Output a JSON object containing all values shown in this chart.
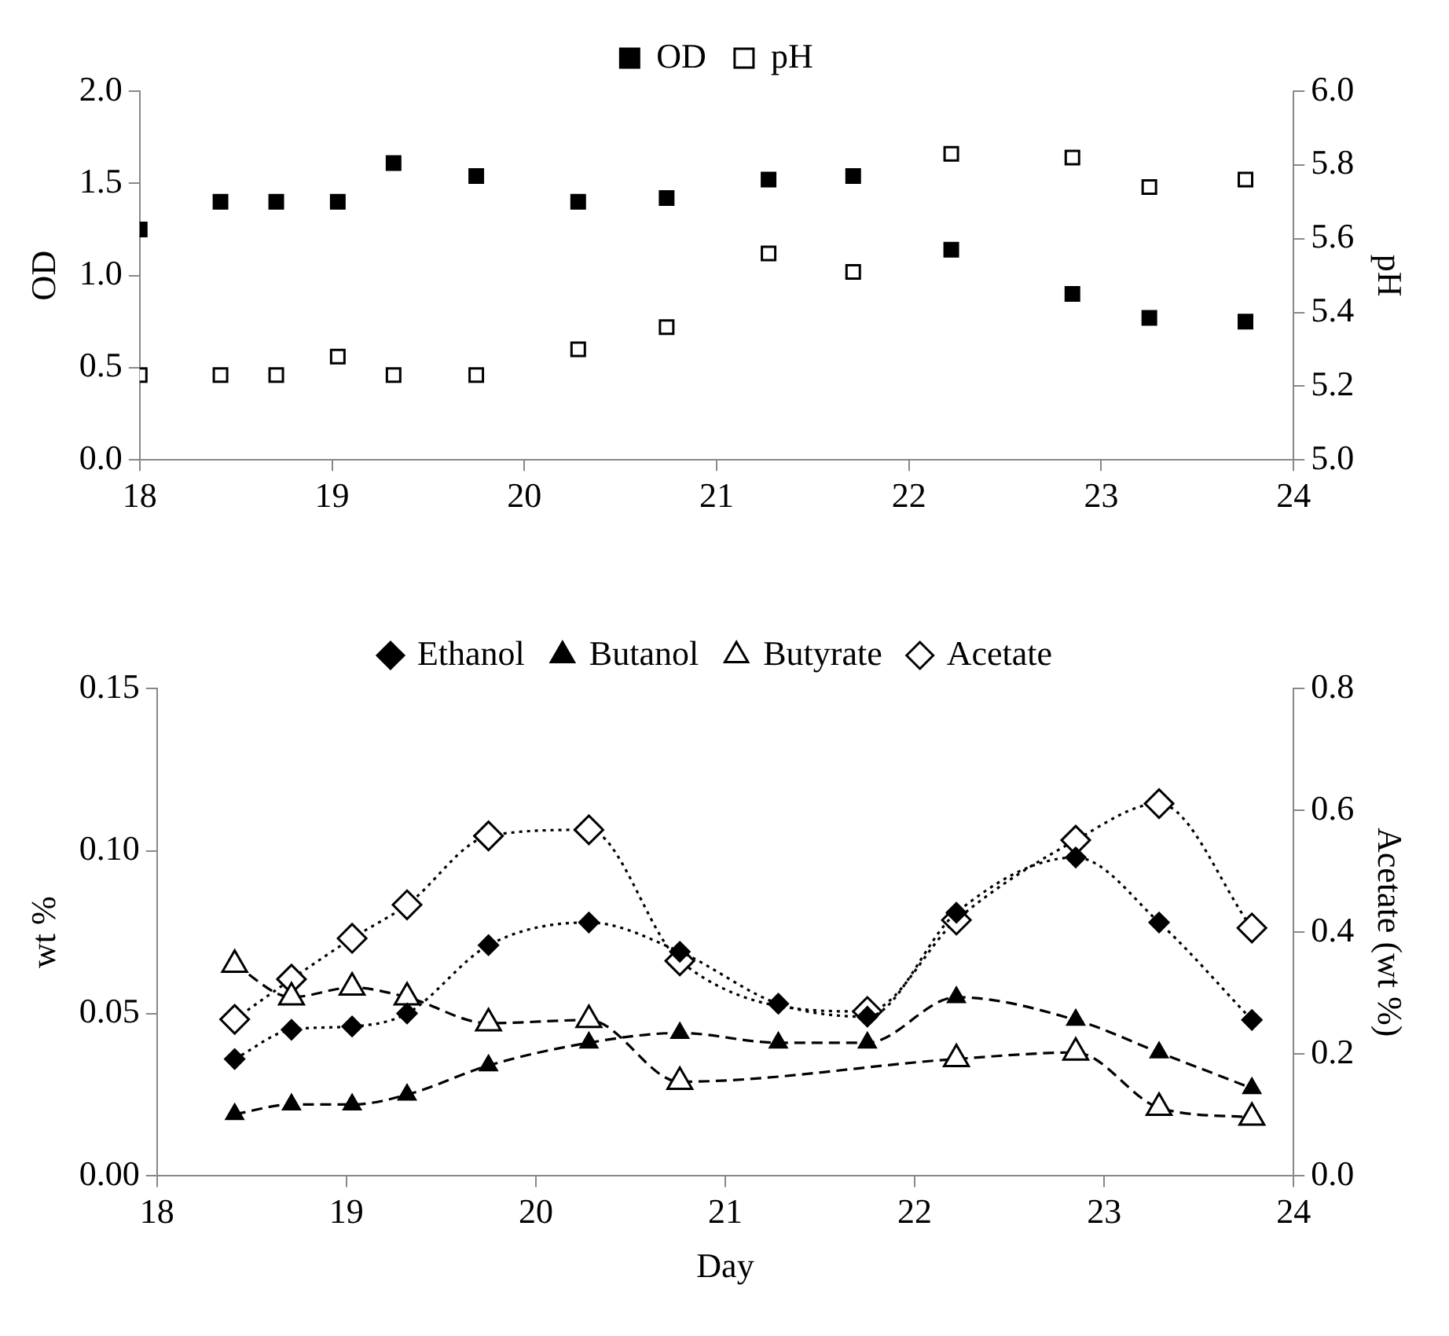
{
  "chart_data": [
    {
      "type": "scatter",
      "ylabel": "OD",
      "y2label": "pH",
      "x": [
        18,
        18.42,
        18.71,
        19.03,
        19.32,
        19.75,
        20.28,
        20.74,
        21.27,
        21.71,
        22.22,
        22.85,
        23.25,
        23.75
      ],
      "series": [
        {
          "name": "OD",
          "color": "#000000",
          "marker": "square",
          "values": [
            1.25,
            1.4,
            1.4,
            1.4,
            1.61,
            1.54,
            1.4,
            1.42,
            1.52,
            1.54,
            1.14,
            0.9,
            0.77,
            0.75
          ]
        },
        {
          "name": "pH",
          "color": "#000000",
          "marker": "square",
          "axis": "y2",
          "values": [
            5.23,
            5.23,
            5.23,
            5.28,
            5.23,
            5.23,
            5.3,
            5.36,
            5.56,
            5.51,
            5.83,
            5.82,
            5.74,
            5.76
          ]
        }
      ],
      "xlim": [
        18,
        24
      ],
      "xticks": [
        18,
        19,
        20,
        21,
        22,
        23,
        24
      ],
      "ylim": [
        0,
        2
      ],
      "yticks": [
        {
          "value": 0,
          "label": "0.0"
        },
        {
          "value": 0.5,
          "label": "0.5"
        },
        {
          "value": 1,
          "label": "1.0"
        },
        {
          "value": 1.5,
          "label": "1.5"
        },
        {
          "value": 2,
          "label": "2.0"
        }
      ],
      "y2lim": [
        5,
        6
      ],
      "y2ticks": [
        {
          "value": 5,
          "label": "5.0"
        },
        {
          "value": 5.2,
          "label": "5.2"
        },
        {
          "value": 5.4,
          "label": "5.4"
        },
        {
          "value": 5.6,
          "label": "5.6"
        },
        {
          "value": 5.8,
          "label": "5.8"
        },
        {
          "value": 6,
          "label": "6.0"
        }
      ],
      "grid": false,
      "legend": "top"
    },
    {
      "type": "line",
      "xlabel": "Day",
      "ylabel": "wt %",
      "y2label": "Acetate (wt %)",
      "x": [
        18.41,
        18.71,
        19.03,
        19.32,
        19.75,
        20.28,
        20.76,
        21.28,
        21.75,
        22.22,
        22.85,
        23.29,
        23.78
      ],
      "series": [
        {
          "name": "Ethanol",
          "color": "#000000",
          "marker": "diamond",
          "line_style": "dotted",
          "values": [
            0.036,
            0.045,
            0.046,
            0.05,
            0.071,
            0.078,
            0.069,
            0.053,
            0.049,
            0.081,
            0.098,
            0.078,
            0.048
          ]
        },
        {
          "name": "Butanol",
          "color": "#000000",
          "marker": "triangle",
          "line_style": "dashed",
          "values": [
            0.019,
            0.022,
            0.022,
            0.025,
            0.034,
            0.041,
            0.044,
            0.041,
            0.041,
            0.055,
            0.048,
            0.038,
            0.027
          ]
        },
        {
          "name": "Butyrate",
          "color": "#000000",
          "marker": "triangle",
          "line_style": "dashed",
          "values": [
            0.065,
            0.055,
            0.058,
            0.055,
            0.047,
            0.048,
            0.029,
            null,
            null,
            0.036,
            0.038,
            0.021,
            0.018
          ]
        },
        {
          "name": "Acetate",
          "color": "#000000",
          "marker": "diamond",
          "line_style": "dotted",
          "axis": "y2",
          "values": [
            0.257,
            0.323,
            0.39,
            0.445,
            0.558,
            0.568,
            0.353,
            null,
            0.27,
            0.42,
            0.551,
            0.611,
            0.407
          ]
        }
      ],
      "xlim": [
        18,
        24
      ],
      "xticks": [
        18,
        19,
        20,
        21,
        22,
        23,
        24
      ],
      "ylim": [
        0,
        0.15
      ],
      "yticks": [
        {
          "value": 0,
          "label": "0.00"
        },
        {
          "value": 0.05,
          "label": "0.05"
        },
        {
          "value": 0.1,
          "label": "0.10"
        },
        {
          "value": 0.15,
          "label": "0.15"
        }
      ],
      "y2lim": [
        0,
        0.8
      ],
      "y2ticks": [
        {
          "value": 0,
          "label": "0.0"
        },
        {
          "value": 0.2,
          "label": "0.2"
        },
        {
          "value": 0.4,
          "label": "0.4"
        },
        {
          "value": 0.6,
          "label": "0.6"
        },
        {
          "value": 0.8,
          "label": "0.8"
        }
      ],
      "grid": false,
      "legend": "top"
    }
  ]
}
